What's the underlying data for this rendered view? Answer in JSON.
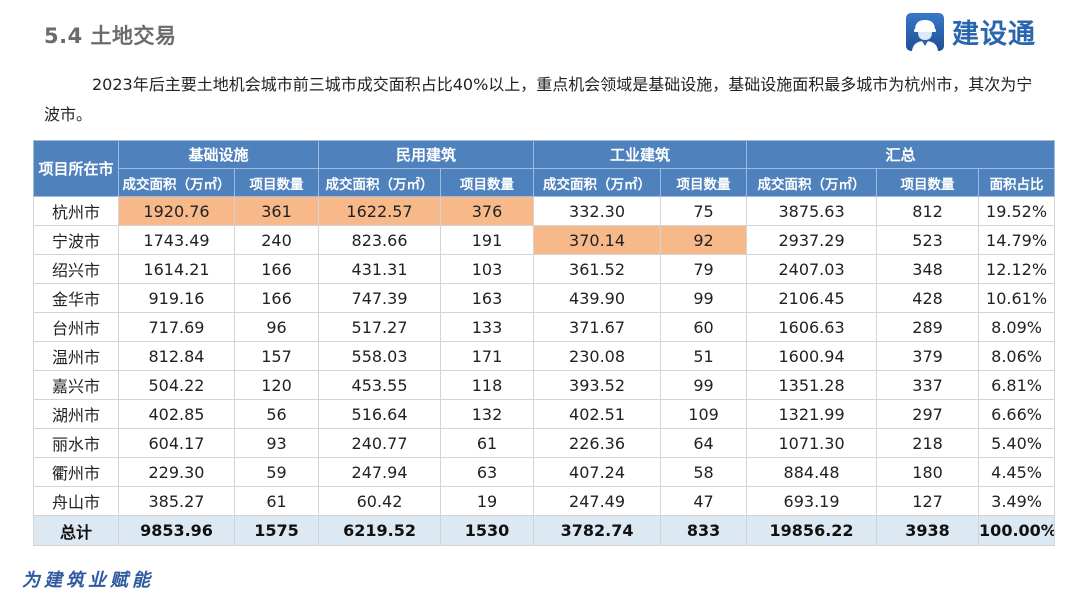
{
  "header": {
    "section_title": "5.4 土地交易",
    "logo_text": "建设通",
    "logo_icon": "worker-helmet-icon"
  },
  "paragraph": "2023年后主要土地机会城市前三城市成交面积占比40%以上，重点机会领域是基础设施，基础设施面积最多城市为杭州市，其次为宁波市。",
  "table": {
    "city_header": "项目所在市",
    "groups": [
      "基础设施",
      "民用建筑",
      "工业建筑",
      "汇总"
    ],
    "subheaders": [
      "成交面积（万㎡）",
      "项目数量",
      "成交面积（万㎡）",
      "项目数量",
      "成交面积（万㎡）",
      "项目数量",
      "成交面积（万㎡）",
      "项目数量",
      "面积占比"
    ],
    "highlight_color": "#f7b98a",
    "header_color": "#4f81bd",
    "total_row_color": "#dce8f2",
    "rows": [
      {
        "city": "杭州市",
        "v": [
          "1920.76",
          "361",
          "1622.57",
          "376",
          "332.30",
          "75",
          "3875.63",
          "812",
          "19.52%"
        ]
      },
      {
        "city": "宁波市",
        "v": [
          "1743.49",
          "240",
          "823.66",
          "191",
          "370.14",
          "92",
          "2937.29",
          "523",
          "14.79%"
        ]
      },
      {
        "city": "绍兴市",
        "v": [
          "1614.21",
          "166",
          "431.31",
          "103",
          "361.52",
          "79",
          "2407.03",
          "348",
          "12.12%"
        ]
      },
      {
        "city": "金华市",
        "v": [
          "919.16",
          "166",
          "747.39",
          "163",
          "439.90",
          "99",
          "2106.45",
          "428",
          "10.61%"
        ]
      },
      {
        "city": "台州市",
        "v": [
          "717.69",
          "96",
          "517.27",
          "133",
          "371.67",
          "60",
          "1606.63",
          "289",
          "8.09%"
        ]
      },
      {
        "city": "温州市",
        "v": [
          "812.84",
          "157",
          "558.03",
          "171",
          "230.08",
          "51",
          "1600.94",
          "379",
          "8.06%"
        ]
      },
      {
        "city": "嘉兴市",
        "v": [
          "504.22",
          "120",
          "453.55",
          "118",
          "393.52",
          "99",
          "1351.28",
          "337",
          "6.81%"
        ]
      },
      {
        "city": "湖州市",
        "v": [
          "402.85",
          "56",
          "516.64",
          "132",
          "402.51",
          "109",
          "1321.99",
          "297",
          "6.66%"
        ]
      },
      {
        "city": "丽水市",
        "v": [
          "604.17",
          "93",
          "240.77",
          "61",
          "226.36",
          "64",
          "1071.30",
          "218",
          "5.40%"
        ]
      },
      {
        "city": "衢州市",
        "v": [
          "229.30",
          "59",
          "247.94",
          "63",
          "407.24",
          "58",
          "884.48",
          "180",
          "4.45%"
        ]
      },
      {
        "city": "舟山市",
        "v": [
          "385.27",
          "61",
          "60.42",
          "19",
          "247.49",
          "47",
          "693.19",
          "127",
          "3.49%"
        ]
      }
    ],
    "total": {
      "label": "总计",
      "v": [
        "9853.96",
        "1575",
        "6219.52",
        "1530",
        "3782.74",
        "833",
        "19856.22",
        "3938",
        "100.00%"
      ]
    }
  },
  "footer": {
    "slogan": "为建筑业赋能"
  }
}
